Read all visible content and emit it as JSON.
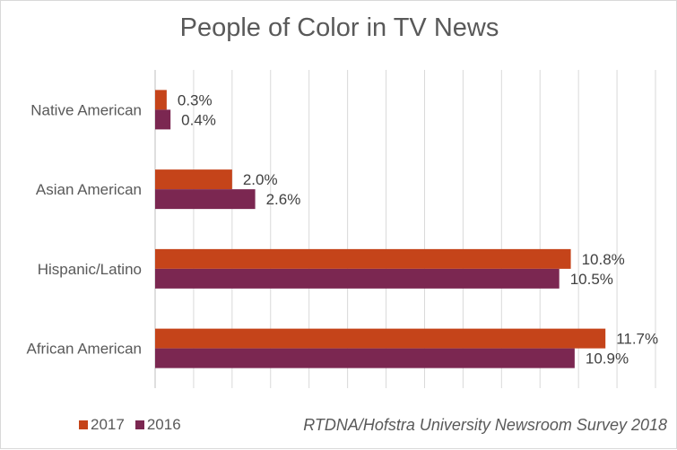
{
  "chart_data": {
    "type": "bar",
    "orientation": "horizontal",
    "title": "People of Color in TV News",
    "categories": [
      "Native American",
      "Asian American",
      "Hispanic/Latino",
      "African American"
    ],
    "series": [
      {
        "name": "2017",
        "color": "#c5441a",
        "values": [
          0.3,
          2.0,
          10.8,
          11.7
        ],
        "labels": [
          "0.3%",
          "2.0%",
          "10.8%",
          "11.7%"
        ]
      },
      {
        "name": "2016",
        "color": "#7b2751",
        "values": [
          0.4,
          2.6,
          10.5,
          10.9
        ],
        "labels": [
          "0.4%",
          "2.6%",
          "10.5%",
          "10.9%"
        ]
      }
    ],
    "xlim": [
      0,
      13
    ],
    "grid": true,
    "legend_position": "bottom-left",
    "source": "RTDNA/Hofstra University Newsroom Survey 2018"
  }
}
